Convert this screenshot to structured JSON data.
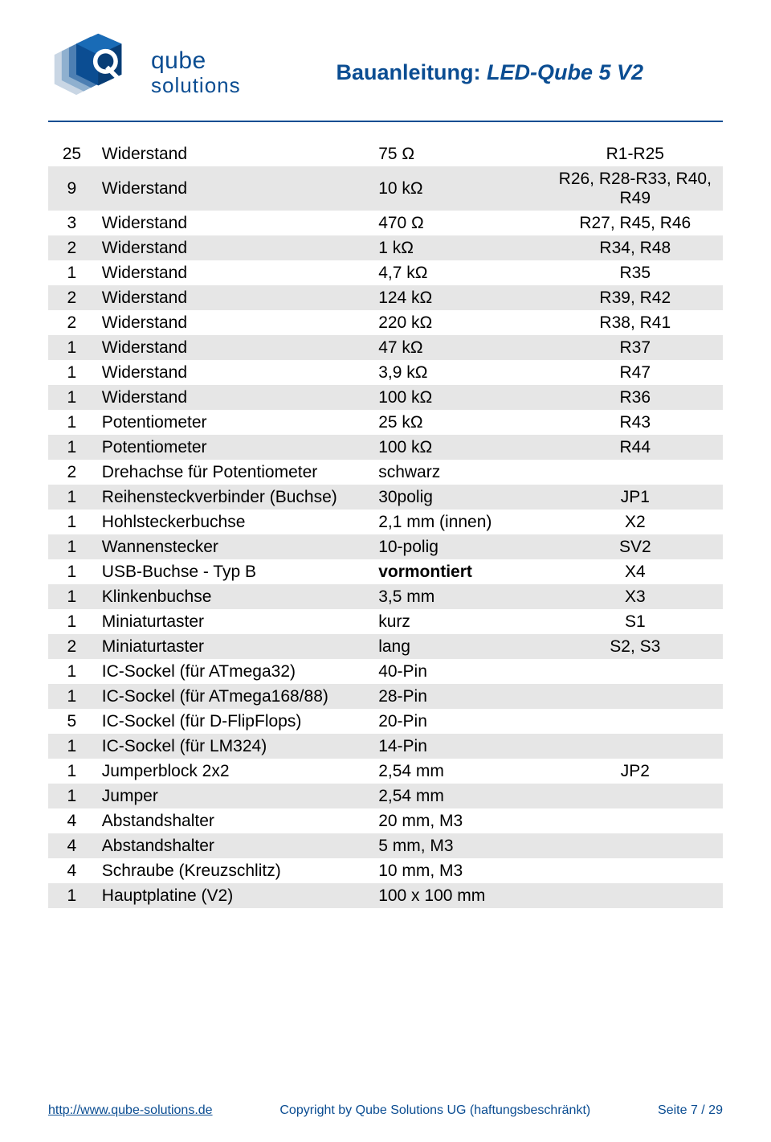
{
  "brand": {
    "top": "qube",
    "bot": "solutions"
  },
  "title": {
    "prefix": "Bauanleitung: ",
    "name": "LED-Qube 5 V2"
  },
  "columns": [
    "qty",
    "desc",
    "val",
    "ref"
  ],
  "rows": [
    {
      "qty": "25",
      "desc": "Widerstand",
      "val": "75  Ω",
      "ref": "R1-R25"
    },
    {
      "qty": "9",
      "desc": "Widerstand",
      "val": "10 kΩ",
      "ref": "R26, R28-R33, R40, R49"
    },
    {
      "qty": "3",
      "desc": "Widerstand",
      "val": "470  Ω",
      "ref": "R27, R45, R46"
    },
    {
      "qty": "2",
      "desc": "Widerstand",
      "val": "1 kΩ",
      "ref": "R34, R48"
    },
    {
      "qty": "1",
      "desc": "Widerstand",
      "val": "4,7 kΩ",
      "ref": "R35"
    },
    {
      "qty": "2",
      "desc": "Widerstand",
      "val": "124 kΩ",
      "ref": "R39, R42"
    },
    {
      "qty": "2",
      "desc": "Widerstand",
      "val": "220 kΩ",
      "ref": "R38, R41"
    },
    {
      "qty": "1",
      "desc": "Widerstand",
      "val": "47 kΩ",
      "ref": "R37"
    },
    {
      "qty": "1",
      "desc": "Widerstand",
      "val": "3,9 kΩ",
      "ref": "R47"
    },
    {
      "qty": "1",
      "desc": "Widerstand",
      "val": "100 kΩ",
      "ref": "R36"
    },
    {
      "qty": "1",
      "desc": "Potentiometer",
      "val": "25 kΩ",
      "ref": "R43"
    },
    {
      "qty": "1",
      "desc": "Potentiometer",
      "val": "100 kΩ",
      "ref": "R44"
    },
    {
      "qty": "2",
      "desc": "Drehachse für Potentiometer",
      "val": "schwarz",
      "ref": ""
    },
    {
      "qty": "1",
      "desc": "Reihensteckverbinder (Buchse)",
      "val": "30polig",
      "ref": "JP1"
    },
    {
      "qty": "1",
      "desc": "Hohlsteckerbuchse",
      "val": "2,1 mm (innen)",
      "ref": "X2"
    },
    {
      "qty": "1",
      "desc": "Wannenstecker",
      "val": "10-polig",
      "ref": "SV2"
    },
    {
      "qty": "1",
      "desc": "USB-Buchse - Typ B",
      "val": "vormontiert",
      "ref": "X4",
      "val_bold": true
    },
    {
      "qty": "1",
      "desc": "Klinkenbuchse",
      "val": "3,5 mm",
      "ref": "X3"
    },
    {
      "qty": "1",
      "desc": "Miniaturtaster",
      "val": "kurz",
      "ref": "S1"
    },
    {
      "qty": "2",
      "desc": "Miniaturtaster",
      "val": "lang",
      "ref": "S2, S3"
    },
    {
      "qty": "1",
      "desc": "IC-Sockel (für ATmega32)",
      "val": "40-Pin",
      "ref": ""
    },
    {
      "qty": "1",
      "desc": "IC-Sockel (für ATmega168/88)",
      "val": "28-Pin",
      "ref": ""
    },
    {
      "qty": "5",
      "desc": "IC-Sockel (für D-FlipFlops)",
      "val": "20-Pin",
      "ref": ""
    },
    {
      "qty": "1",
      "desc": "IC-Sockel (für LM324)",
      "val": "14-Pin",
      "ref": ""
    },
    {
      "qty": "1",
      "desc": "Jumperblock 2x2",
      "val": "2,54 mm",
      "ref": "JP2"
    },
    {
      "qty": "1",
      "desc": "Jumper",
      "val": "2,54 mm",
      "ref": ""
    },
    {
      "qty": "4",
      "desc": "Abstandshalter",
      "val": "20 mm, M3",
      "ref": ""
    },
    {
      "qty": "4",
      "desc": "Abstandshalter",
      "val": "5 mm, M3",
      "ref": ""
    },
    {
      "qty": "4",
      "desc": "Schraube (Kreuzschlitz)",
      "val": "10 mm, M3",
      "ref": ""
    },
    {
      "qty": "1",
      "desc": "Hauptplatine (V2)",
      "val": "100 x 100 mm",
      "ref": ""
    }
  ],
  "footer": {
    "url": "http://www.qube-solutions.de",
    "mid": "Copyright by Qube Solutions UG (haftungsbeschränkt)",
    "page": "Seite 7 / 29"
  },
  "colors": {
    "brand": "#0b4d92",
    "stripe": "#e6e6e6",
    "text": "#000000",
    "bg": "#ffffff"
  }
}
